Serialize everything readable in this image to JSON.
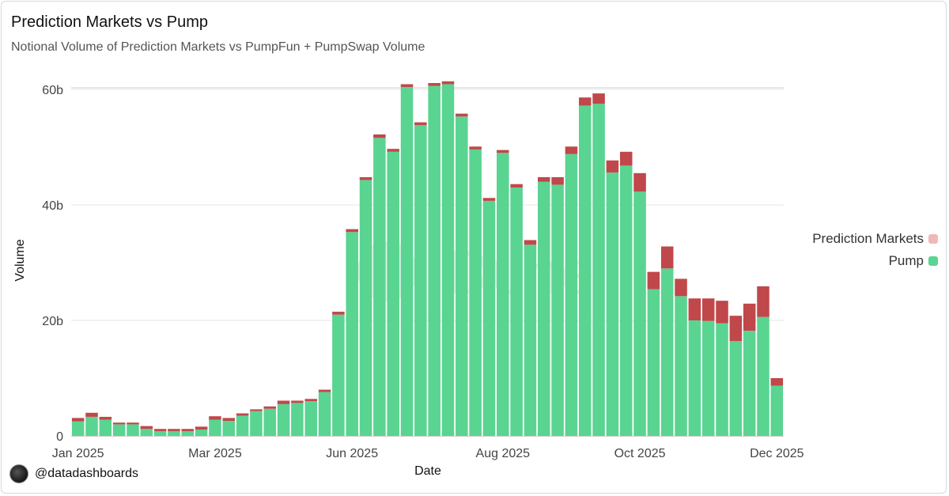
{
  "chart_data": {
    "type": "bar",
    "stacked": true,
    "title": "Prediction Markets vs Pump",
    "subtitle": "Notional Volume of Prediction Markets vs PumpFun + PumpSwap Volume",
    "xlabel": "Date",
    "ylabel": "Volume",
    "ylim": [
      0,
      60
    ],
    "yticks": [
      {
        "value": 0,
        "label": "0"
      },
      {
        "value": 20,
        "label": "20b"
      },
      {
        "value": 40,
        "label": "40b"
      },
      {
        "value": 60,
        "label": "60b"
      }
    ],
    "xticks": [
      {
        "index": 0,
        "label": "Jan 2025"
      },
      {
        "index": 10,
        "label": "Mar 2025"
      },
      {
        "index": 20,
        "label": "Jun 2025"
      },
      {
        "index": 31,
        "label": "Aug 2025"
      },
      {
        "index": 41,
        "label": "Oct 2025"
      },
      {
        "index": 51,
        "label": "Dec 2025"
      }
    ],
    "legend": "right",
    "grid": true,
    "watermark": "Dune",
    "series": [
      {
        "name": "Pump",
        "color": "#5ad491",
        "values": [
          2.5,
          3.3,
          2.8,
          2.0,
          2.0,
          1.2,
          0.8,
          0.8,
          0.8,
          1.1,
          2.8,
          2.6,
          3.5,
          4.3,
          4.7,
          5.5,
          5.7,
          6.0,
          7.6,
          21.0,
          35.3,
          44.3,
          51.6,
          49.2,
          60.4,
          53.8,
          60.6,
          60.9,
          55.3,
          49.6,
          40.7,
          49.0,
          43.0,
          33.1,
          44.0,
          43.5,
          48.8,
          57.2,
          57.5,
          45.6,
          46.8,
          42.3,
          25.4,
          29.0,
          24.2,
          20.0,
          19.9,
          19.5,
          16.4,
          18.2,
          20.6,
          8.7
        ]
      },
      {
        "name": "Prediction Markets",
        "color": "#c0484a",
        "values": [
          0.6,
          0.7,
          0.5,
          0.3,
          0.3,
          0.5,
          0.4,
          0.4,
          0.4,
          0.5,
          0.6,
          0.5,
          0.4,
          0.3,
          0.4,
          0.6,
          0.4,
          0.4,
          0.4,
          0.5,
          0.5,
          0.5,
          0.6,
          0.5,
          0.5,
          0.5,
          0.5,
          0.5,
          0.5,
          0.5,
          0.5,
          0.5,
          0.6,
          0.8,
          0.8,
          1.3,
          1.3,
          1.4,
          1.8,
          2.1,
          2.4,
          3.2,
          3.0,
          3.8,
          3.0,
          3.8,
          3.9,
          3.9,
          4.4,
          4.7,
          5.3,
          1.3
        ]
      }
    ]
  },
  "legend_items": [
    {
      "label": "Prediction Markets",
      "color": "#f0b9b9"
    },
    {
      "label": "Pump",
      "color": "#5ad491"
    }
  ],
  "footer": {
    "handle": "@datadashboards"
  }
}
